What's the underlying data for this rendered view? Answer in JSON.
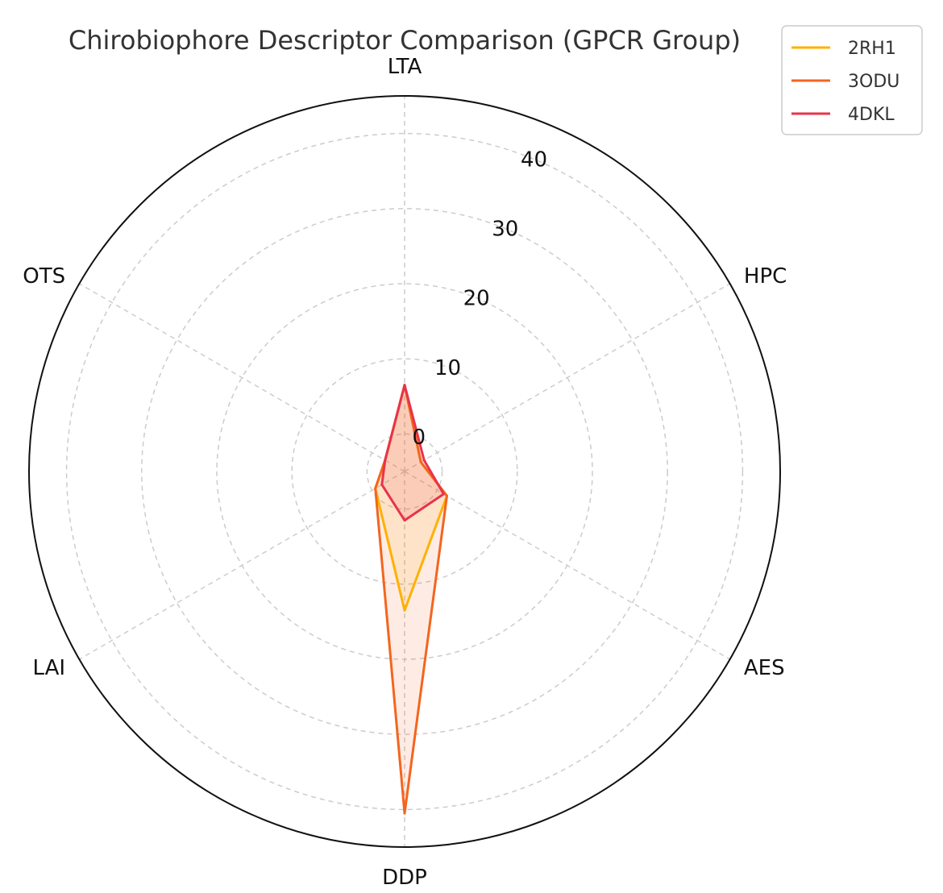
{
  "chart_data": {
    "type": "radar",
    "title": "Chirobiophore Descriptor Comparison (GPCR Group)",
    "axes": [
      "LTA",
      "HPC",
      "AES",
      "DDP",
      "LAI",
      "OTS"
    ],
    "rlim": [
      -5,
      45
    ],
    "r_ticks": [
      0,
      10,
      20,
      30,
      40
    ],
    "r_tick_labels": [
      "0",
      "10",
      "20",
      "30",
      "40"
    ],
    "grid": true,
    "legend_position": "top-right",
    "series": [
      {
        "name": "2RH1",
        "color": "#FFB000",
        "fill_opacity": 0.12,
        "values": [
          6.5,
          -2.5,
          1.5,
          13.5,
          -0.5,
          -2.0
        ]
      },
      {
        "name": "3ODU",
        "color": "#F4651E",
        "fill_opacity": 0.12,
        "values": [
          6.5,
          -2.5,
          1.5,
          40.5,
          -0.5,
          -2.0
        ]
      },
      {
        "name": "4DKL",
        "color": "#E8334A",
        "fill_opacity": 0.12,
        "values": [
          6.5,
          -2.0,
          1.0,
          1.5,
          -1.5,
          -2.0
        ]
      }
    ]
  }
}
